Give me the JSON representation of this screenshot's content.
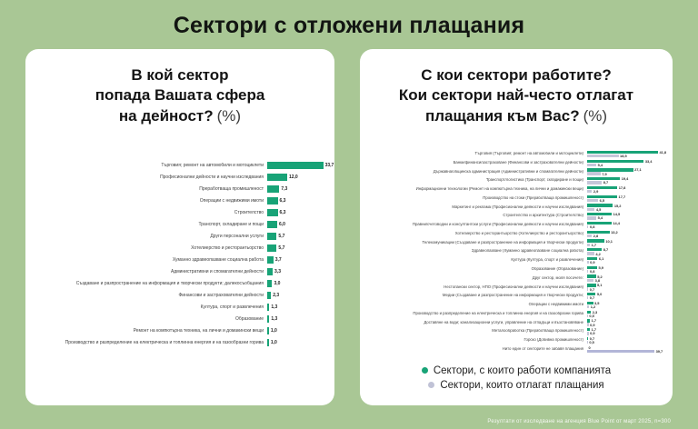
{
  "page_title": "Сектори с отложени плащания",
  "footer_note": "Резултати от изследване на агенция Blue Point от март 2025, n=300",
  "colors": {
    "background": "#a9c795",
    "card": "#ffffff",
    "bar_green": "#18a377",
    "bar_gray": "#c6c7d9",
    "bar_lavender": "#b3b6d8",
    "title_text": "#121512"
  },
  "left_panel": {
    "title_lines": [
      "В кой сектор",
      "попада Вашата сфера",
      "на дейност?"
    ],
    "title_suffix": "(%)"
  },
  "right_panel": {
    "title_lines": [
      "С кои сектори работите?",
      "Кои сектори най-често отлагат",
      "плащания към Вас?"
    ],
    "title_suffix": "(%)",
    "legend": [
      {
        "label": "Сектори, с които работи компанията",
        "color": "#18a377"
      },
      {
        "label": "Сектори, които отлагат плащания",
        "color": "#c0c2d6"
      }
    ]
  },
  "chart_data": [
    {
      "type": "bar",
      "orientation": "horizontal",
      "title": "В кой сектор попада Вашата сфера на дейност? (%)",
      "xlim": [
        0,
        35
      ],
      "grid": false,
      "categories": [
        "Търговия; ремонт на автомобили и мотоциклети",
        "Професионални дейности и научни изследвания",
        "Преработваща промишленост",
        "Операции с недвижими имоти",
        "Строителство",
        "Транспорт, складиране и пощи",
        "Други персонални услуги",
        "Хотелиерство и ресторантьорство",
        "Хуманно здравеопазване социална работа",
        "Административни и спомагателни дейности",
        "Създаване и разпространение на информация и творчески продукти; далекосъобщания",
        "Финансови и застрахователни дейности",
        "Култура, спорт и развлечения",
        "Образование",
        "Ремонт на компютърна техника, на лични и домакински вещи",
        "Производство и разпределение на електрическа и топлинна енергия и на газообразни горива"
      ],
      "values": [
        33.7,
        12.0,
        7.3,
        6.3,
        6.3,
        6.0,
        5.7,
        5.7,
        3.7,
        3.3,
        3.0,
        2.3,
        1.3,
        1.3,
        1.0,
        1.0
      ]
    },
    {
      "type": "bar",
      "orientation": "horizontal",
      "title": "С кои сектори работите? Кои сектори най-често отлагат плащания към Вас? (%)",
      "xlim": [
        0,
        45
      ],
      "grid": false,
      "legend_position": "bottom",
      "categories": [
        "Търговия (Търговия; ремонт на автомобили и мотоциклети)",
        "Банки/финанси/застраховане (Финансови и застрахователни дейности)",
        "Държавна/общинска администрация (Административни и спомагателни дейности)",
        "Транспорт/логистика (Транспорт, складиране и пощи)",
        "Информационни технологии (Ремонт на компютърна техника, на лични и домакински вещи)",
        "Производство на стоки (Преработваща промишленост)",
        "Маркетинг и реклама (Професионални дейности и научни изследвания)",
        "Строителство и архитектура (Строителство)",
        "Правни/счетоводни и консултантски услуги (Професионални дейности и научни изследвания)",
        "Хотелиерство и ресторантьорство (Хотелиерство и ресторантьорство)",
        "Телекомуникации (Създаване и разпространение на информация и творчески продукти)",
        "Здравеопазване (Хуманно здравеопазване социална работа)",
        "Култура (Култура, спорт и развлечения)",
        "Образование (Образование)",
        "Друг сектор, моля посочете:",
        "Нестопански сектор, НПО (Професионални дейности и научни изследвания)",
        "Медии (Създаване и разпространение на информация и творчески продукти;",
        "Операции с недвижими имоти",
        "Производство и разпределение на електрическа и топлинна енергия и на газообразни горива",
        "Доставяне на води; канализационни услуги, управление на отпадъци и възстановяване",
        "Металообработка (Преработваща промишленост)",
        "Горско (Добивна промишленост)",
        "Нито един от секторите не забавя плащания"
      ],
      "series": [
        {
          "name": "Сектори, с които работи компанията",
          "color": "#18a377",
          "values": [
            41.8,
            33.4,
            27.1,
            19.4,
            17.8,
            17.7,
            15.2,
            14.5,
            14.4,
            13.2,
            10.1,
            8.7,
            6.1,
            5.9,
            5.2,
            5.1,
            5.0,
            3.5,
            2.3,
            1.7,
            1.7,
            0.7,
            0
          ]
        },
        {
          "name": "Сектори, които отлагат плащания",
          "color": "#c6c7d9",
          "overrides": {
            "22": "#b3b6d8"
          },
          "values": [
            18.5,
            5.4,
            7.9,
            8.7,
            2.9,
            6.5,
            4.5,
            5.4,
            0.8,
            2.8,
            1.7,
            4.2,
            0.9,
            0.8,
            3.8,
            0.7,
            0.7,
            1.2,
            0.5,
            0.9,
            0.9,
            0.5,
            39.7
          ]
        }
      ]
    }
  ]
}
